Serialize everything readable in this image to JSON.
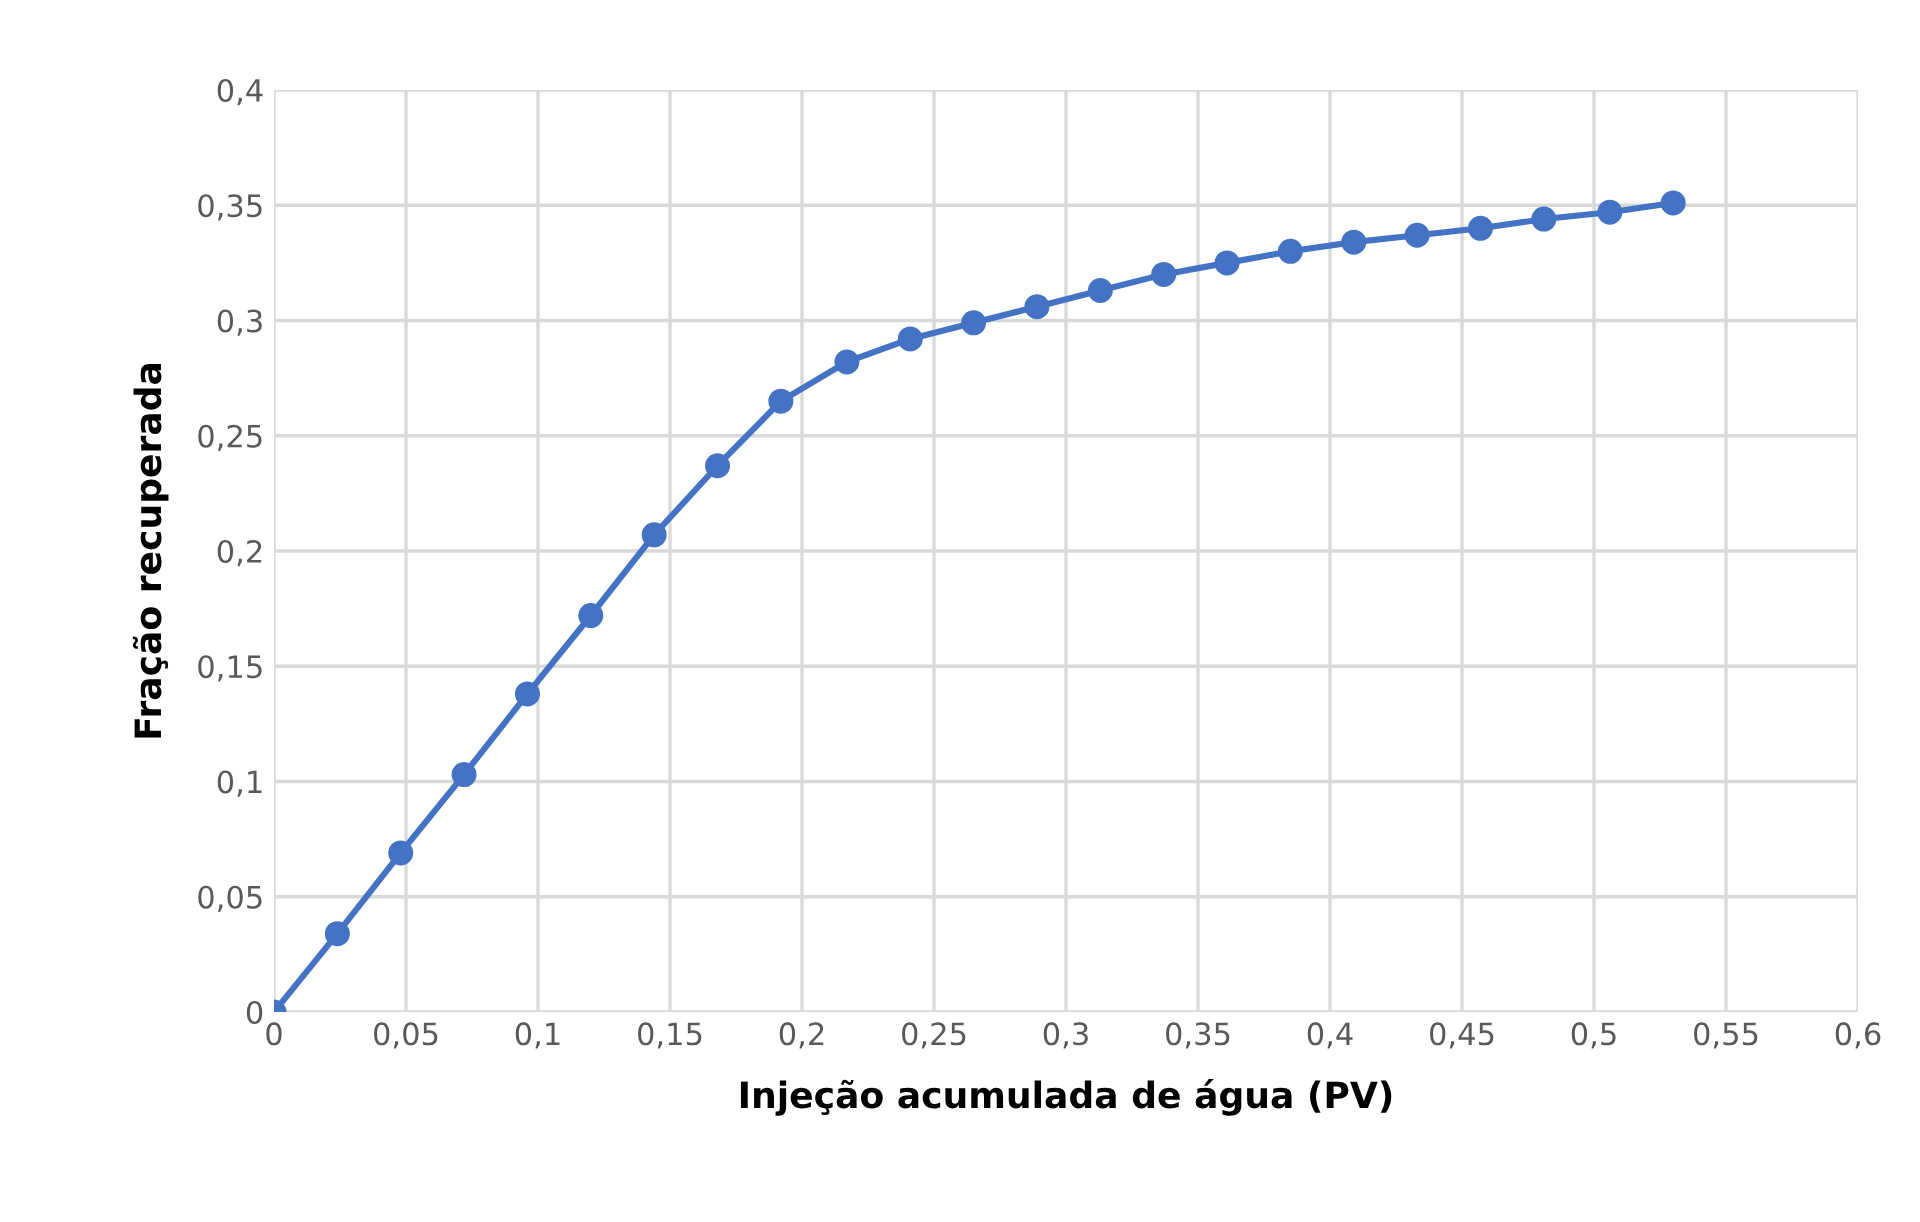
{
  "chart_data": {
    "type": "line",
    "xlabel": "Injeção acumulada de água (PV)",
    "ylabel": "Fração recuperada",
    "x": [
      0,
      0.024,
      0.048,
      0.072,
      0.096,
      0.12,
      0.144,
      0.168,
      0.192,
      0.217,
      0.241,
      0.265,
      0.289,
      0.313,
      0.337,
      0.361,
      0.385,
      0.409,
      0.433,
      0.457,
      0.481,
      0.506,
      0.53
    ],
    "series": [
      {
        "color": "#4472c4",
        "values": [
          0,
          0.034,
          0.069,
          0.103,
          0.138,
          0.172,
          0.207,
          0.237,
          0.265,
          0.282,
          0.292,
          0.299,
          0.306,
          0.313,
          0.32,
          0.325,
          0.33,
          0.334,
          0.337,
          0.34,
          0.344,
          0.347,
          0.351
        ]
      }
    ],
    "xlim": [
      0,
      0.6
    ],
    "ylim": [
      0,
      0.4
    ],
    "xticks": [
      0,
      {
        "value": 0.05,
        "label": "0,05"
      },
      {
        "value": 0.1,
        "label": "0,1"
      },
      {
        "value": 0.15,
        "label": "0,15"
      },
      {
        "value": 0.2,
        "label": "0,2"
      },
      {
        "value": 0.25,
        "label": "0,25"
      },
      {
        "value": 0.3,
        "label": "0,3"
      },
      {
        "value": 0.35,
        "label": "0,35"
      },
      {
        "value": 0.4,
        "label": "0,4"
      },
      {
        "value": 0.45,
        "label": "0,45"
      },
      {
        "value": 0.5,
        "label": "0,5"
      },
      {
        "value": 0.55,
        "label": "0,55"
      },
      {
        "value": 0.6,
        "label": "0,6"
      }
    ],
    "yticks": [
      0,
      {
        "value": 0.05,
        "label": "0,05"
      },
      {
        "value": 0.1,
        "label": "0,1"
      },
      {
        "value": 0.15,
        "label": "0,15"
      },
      {
        "value": 0.2,
        "label": "0,2"
      },
      {
        "value": 0.25,
        "label": "0,25"
      },
      {
        "value": 0.3,
        "label": "0,3"
      },
      {
        "value": 0.35,
        "label": "0,35"
      },
      {
        "value": 0.4,
        "label": "0,4"
      }
    ],
    "grid": true,
    "marker": "circle",
    "line_style": "solid",
    "legend": false
  }
}
